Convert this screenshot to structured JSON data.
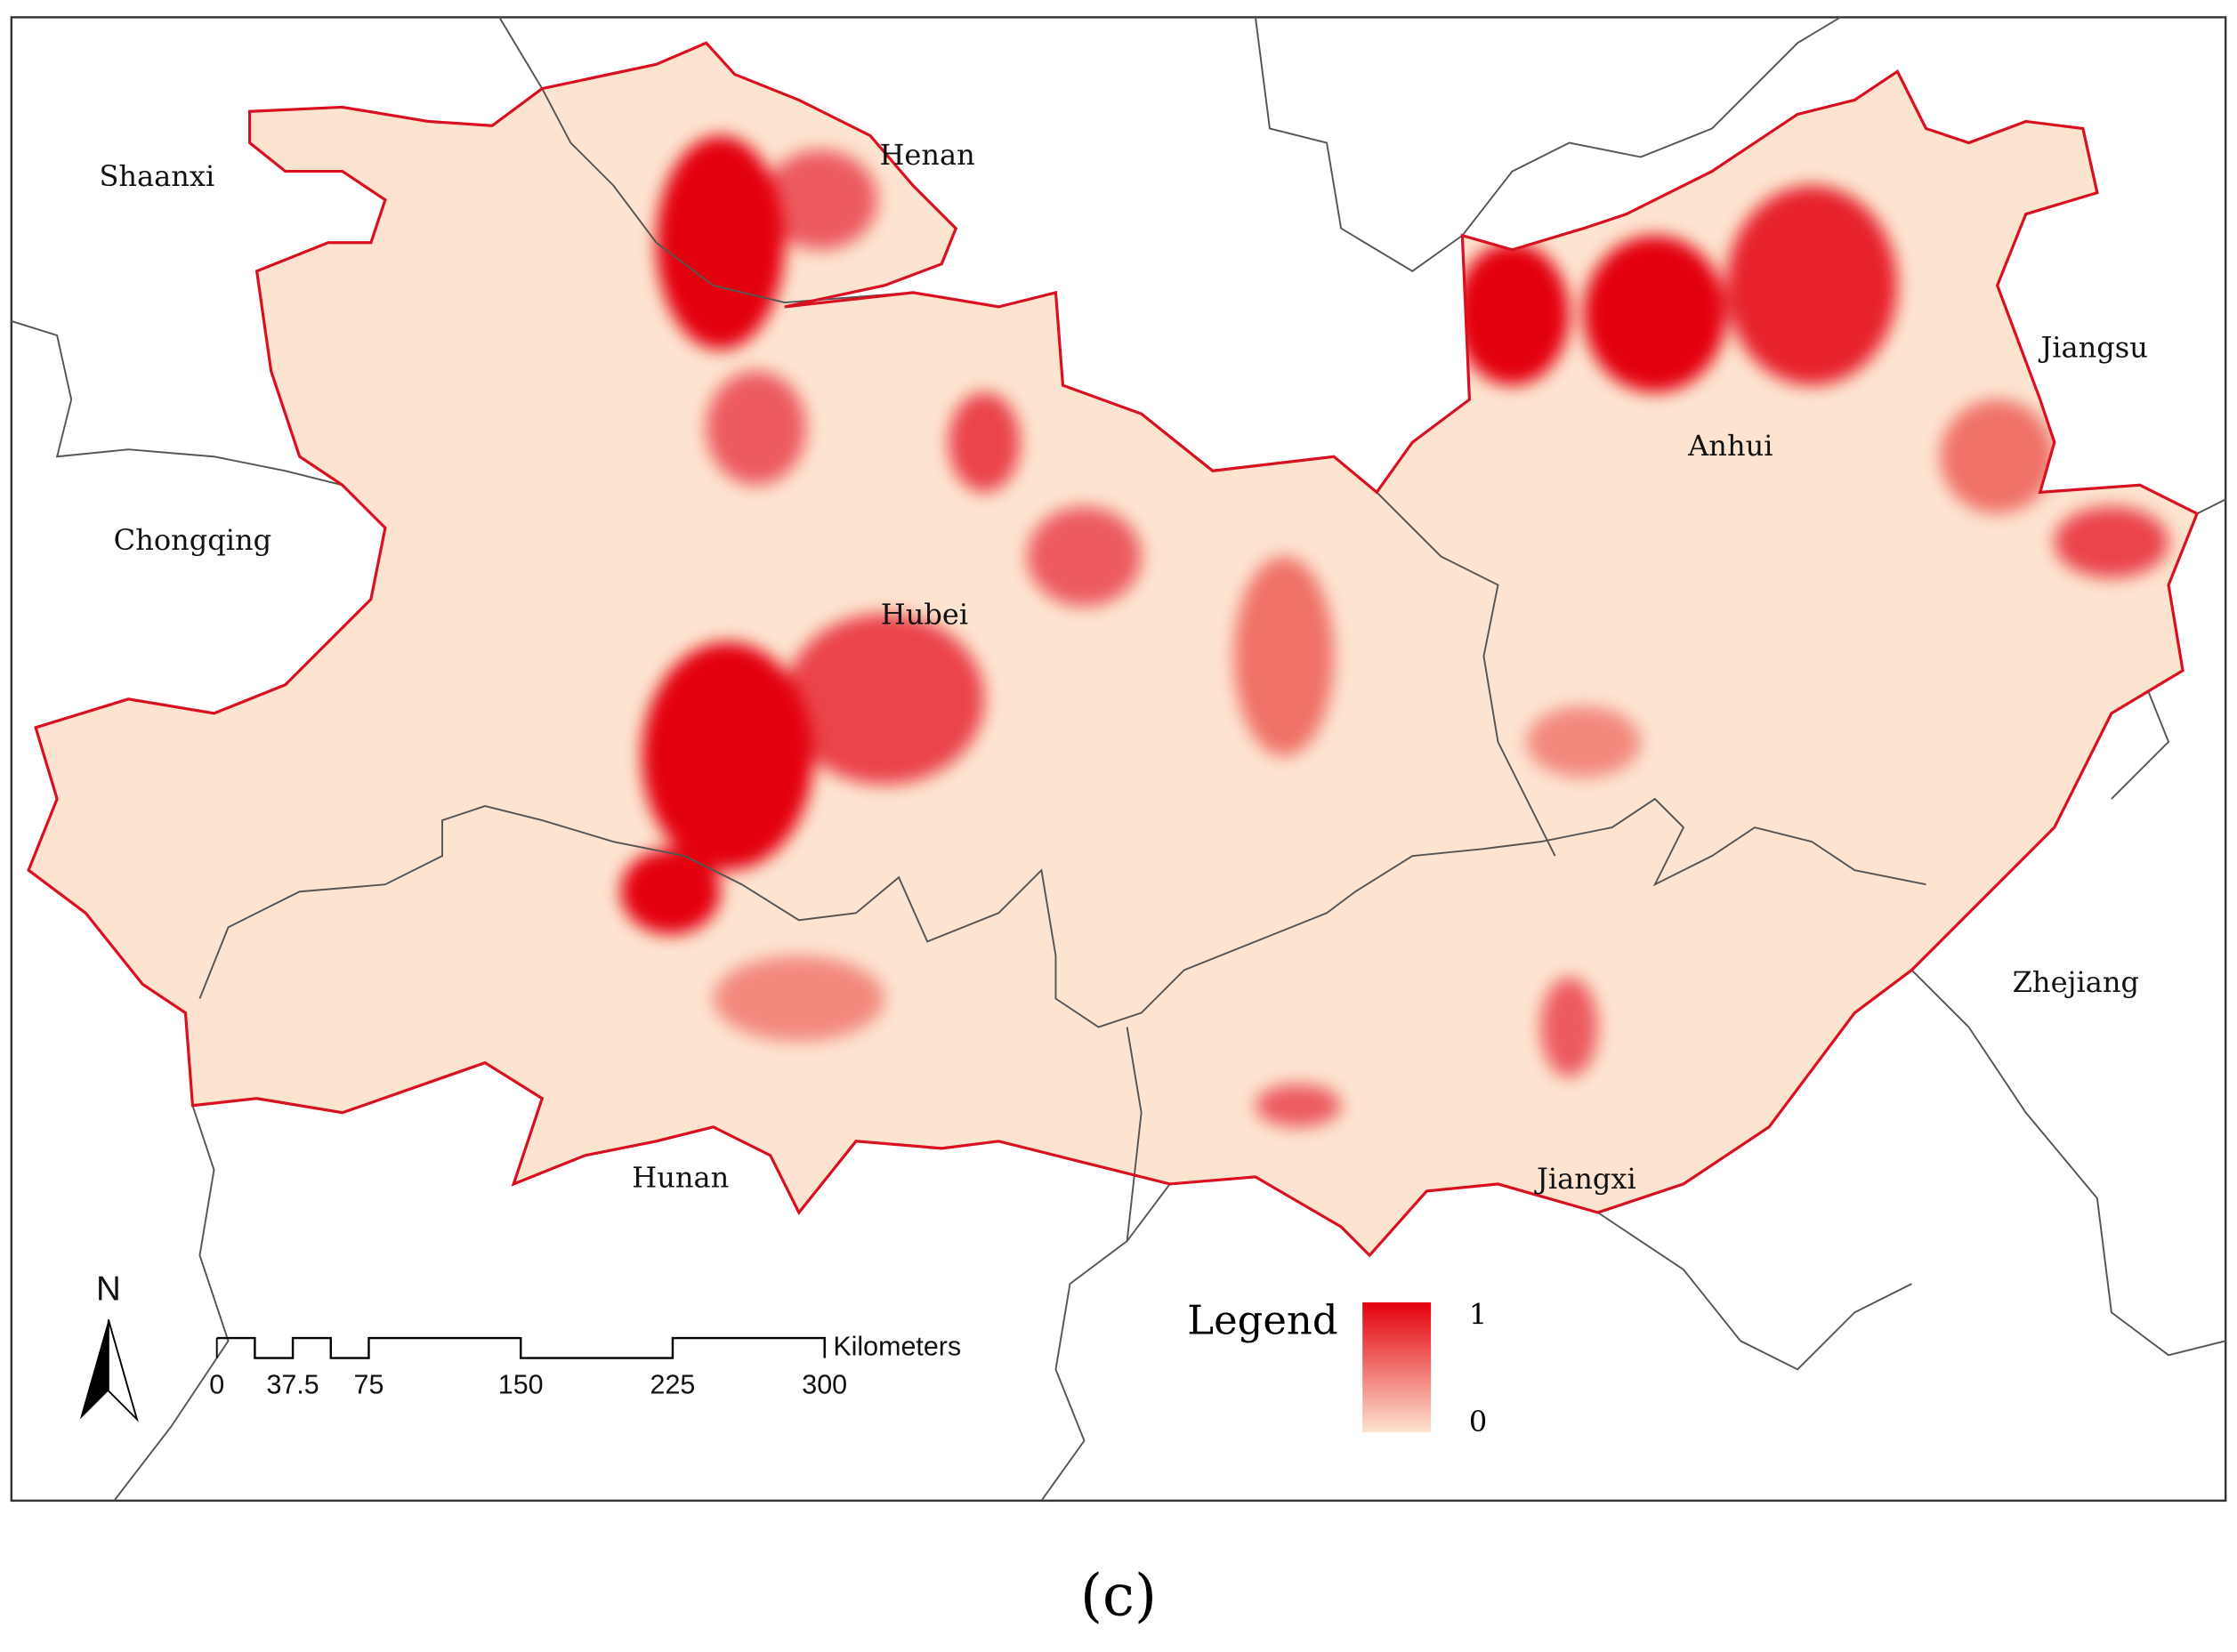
{
  "labels": {
    "shaanxi": "Shaanxi",
    "henan": "Henan",
    "chongqing": "Chongqing",
    "hubei": "Hubei",
    "anhui": "Anhui",
    "jiangsu": "Jiangsu",
    "zhejiang": "Zhejiang",
    "hunan": "Hunan",
    "jiangxi": "Jiangxi"
  },
  "north_arrow": "N",
  "scale_bar": {
    "unit": "Kilometers",
    "ticks": [
      0,
      37.5,
      75,
      150,
      225,
      300
    ]
  },
  "legend": {
    "title": "Legend",
    "max": 1,
    "min": 0
  },
  "caption": "(c)"
}
